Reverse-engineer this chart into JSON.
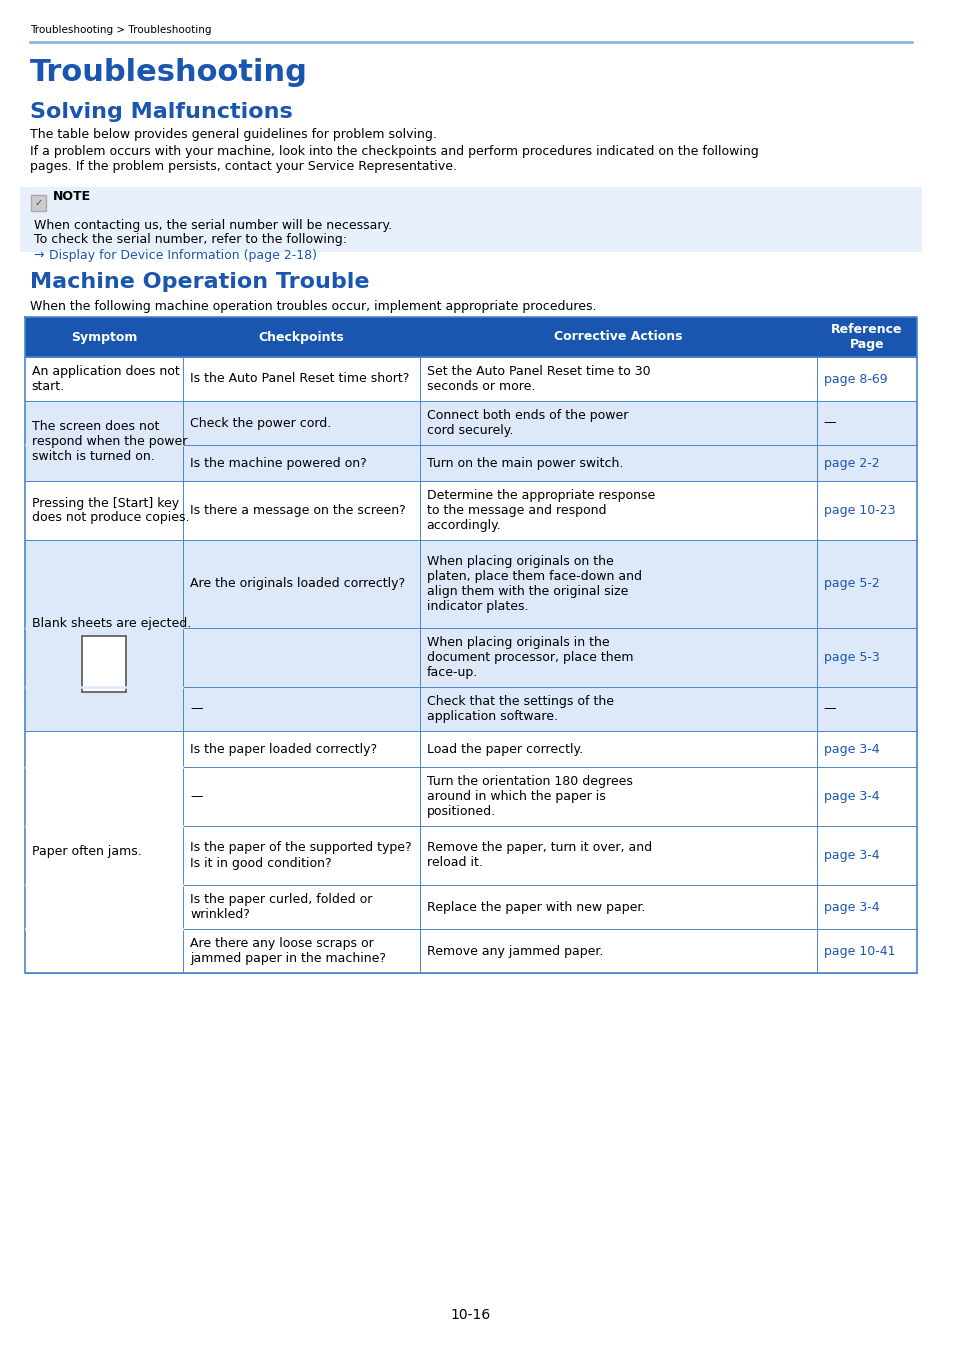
{
  "breadcrumb": "Troubleshooting > Troubleshooting",
  "title": "Troubleshooting",
  "subtitle": "Solving Malfunctions",
  "intro_text1": "The table below provides general guidelines for problem solving.",
  "intro_text2": "If a problem occurs with your machine, look into the checkpoints and perform procedures indicated on the following\npages. If the problem persists, contact your Service Representative.",
  "note_title": "NOTE",
  "note_text1": "When contacting us, the serial number will be necessary.",
  "note_text2": "To check the serial number, refer to the following:",
  "note_link": "Display for Device Information (page 2-18)",
  "section2_title": "Machine Operation Trouble",
  "section2_intro": "When the following machine operation troubles occur, implement appropriate procedures.",
  "table_headers": [
    "Symptom",
    "Checkpoints",
    "Corrective Actions",
    "Reference\nPage"
  ],
  "table_header_bg": "#1a56b0",
  "table_header_fg": "#ffffff",
  "table_row_bg_light": "#dde8f8",
  "table_row_bg_white": "#ffffff",
  "table_border_color": "#4a86c8",
  "link_color": "#1a56b0",
  "blue_color": "#1a56b0",
  "header_rule_color": "#7ab0e0",
  "note_bg": "#e8f0fb",
  "page_number": "10-16",
  "rows": [
    {
      "symptom": "An application does not\nstart.",
      "checkpoints": "Is the Auto Panel Reset time short?",
      "corrective": "Set the Auto Panel Reset time to 30\nseconds or more.",
      "ref": "page 8-69",
      "ref_is_link": true,
      "symptom_rowspan": 1,
      "bg": "white",
      "has_image": false
    },
    {
      "symptom": "The screen does not\nrespond when the power\nswitch is turned on.",
      "checkpoints": "Check the power cord.",
      "corrective": "Connect both ends of the power\ncord securely.",
      "ref": "—",
      "ref_is_link": false,
      "symptom_rowspan": 2,
      "bg": "light",
      "has_image": false
    },
    {
      "symptom": "",
      "checkpoints": "Is the machine powered on?",
      "corrective": "Turn on the main power switch.",
      "ref": "page 2-2",
      "ref_is_link": true,
      "symptom_rowspan": 0,
      "bg": "light",
      "has_image": false
    },
    {
      "symptom": "Pressing the [Start] key\ndoes not produce copies.",
      "checkpoints": "Is there a message on the screen?",
      "corrective": "Determine the appropriate response\nto the message and respond\naccordingly.",
      "ref": "page 10-23",
      "ref_is_link": true,
      "symptom_rowspan": 1,
      "bg": "white",
      "has_image": false
    },
    {
      "symptom": "Blank sheets are ejected.",
      "checkpoints": "Are the originals loaded correctly?",
      "corrective": "When placing originals on the\nplaten, place them face-down and\nalign them with the original size\nindicator plates.",
      "ref": "page 5-2",
      "ref_is_link": true,
      "symptom_rowspan": 3,
      "bg": "light",
      "has_image": true
    },
    {
      "symptom": "",
      "checkpoints": "",
      "corrective": "When placing originals in the\ndocument processor, place them\nface-up.",
      "ref": "page 5-3",
      "ref_is_link": true,
      "symptom_rowspan": 0,
      "bg": "light",
      "has_image": false
    },
    {
      "symptom": "",
      "checkpoints": "—",
      "corrective": "Check that the settings of the\napplication software.",
      "ref": "—",
      "ref_is_link": false,
      "symptom_rowspan": 0,
      "bg": "light",
      "has_image": false
    },
    {
      "symptom": "Paper often jams.",
      "checkpoints": "Is the paper loaded correctly?",
      "corrective": "Load the paper correctly.",
      "ref": "page 3-4",
      "ref_is_link": true,
      "symptom_rowspan": 5,
      "bg": "white",
      "has_image": false
    },
    {
      "symptom": "",
      "checkpoints": "—",
      "corrective": "Turn the orientation 180 degrees\naround in which the paper is\npositioned.",
      "ref": "page 3-4",
      "ref_is_link": true,
      "symptom_rowspan": 0,
      "bg": "white",
      "has_image": false
    },
    {
      "symptom": "",
      "checkpoints": "Is the paper of the supported type?\nIs it in good condition?",
      "corrective": "Remove the paper, turn it over, and\nreload it.",
      "ref": "page 3-4",
      "ref_is_link": true,
      "symptom_rowspan": 0,
      "bg": "white",
      "has_image": false
    },
    {
      "symptom": "",
      "checkpoints": "Is the paper curled, folded or\nwrinkled?",
      "corrective": "Replace the paper with new paper.",
      "ref": "page 3-4",
      "ref_is_link": true,
      "symptom_rowspan": 0,
      "bg": "white",
      "has_image": false
    },
    {
      "symptom": "",
      "checkpoints": "Are there any loose scraps or\njammed paper in the machine?",
      "corrective": "Remove any jammed paper.",
      "ref": "page 10-41",
      "ref_is_link": true,
      "symptom_rowspan": 0,
      "bg": "white",
      "has_image": false
    }
  ]
}
